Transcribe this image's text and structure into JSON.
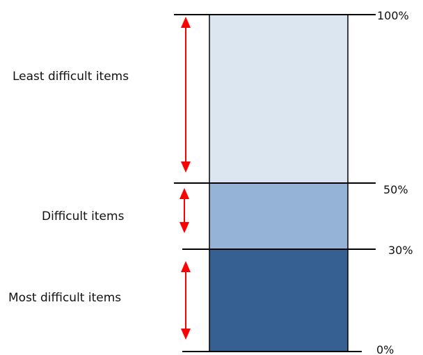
{
  "bands": [
    {
      "label": "Least difficult items",
      "lower": "50%",
      "upper": "100%",
      "color": "#dce6f1"
    },
    {
      "label": "Difficult items",
      "lower": "30%",
      "upper": "50%",
      "color": "#95b3d7"
    },
    {
      "label": "Most difficult items",
      "lower": "0%",
      "upper": "30%",
      "color": "#366092"
    }
  ],
  "thresholds": [
    "100%",
    "50%",
    "30%",
    "0%"
  ],
  "arrow_color": "#ff0000",
  "outline_color": "#000000"
}
